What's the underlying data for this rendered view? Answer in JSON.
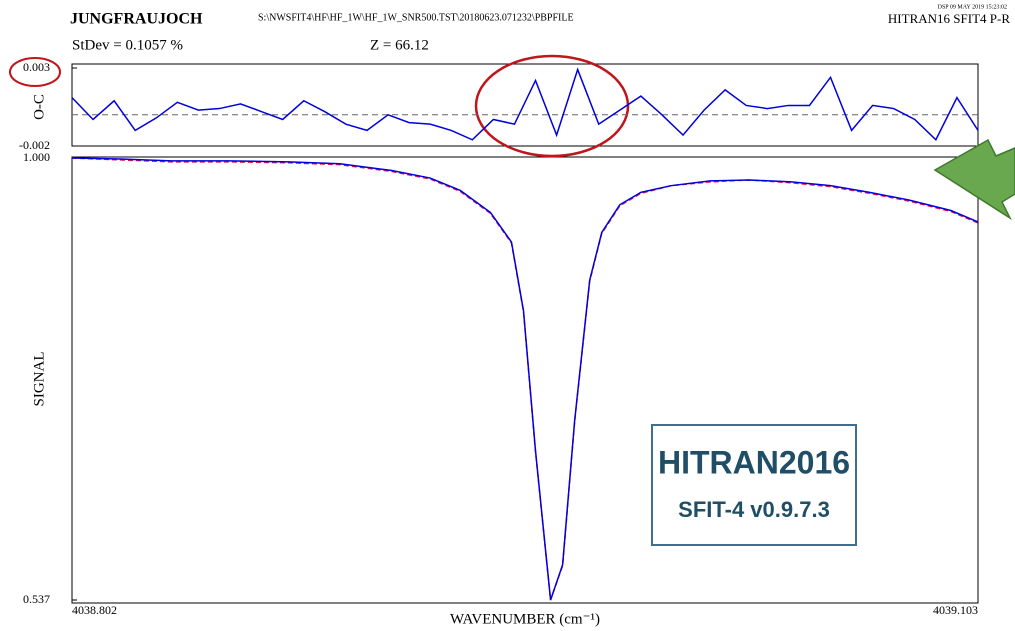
{
  "header": {
    "site": "JUNGFRAUJOCH",
    "file": "S:\\NWSFIT4\\HF\\HF_1W\\HF_1W_SNR500.TST\\20180623.071232\\PBPFILE",
    "stamp": "DSP  09 MAY 2019  15:23:02",
    "run": "HITRAN16 SFIT4 P-R",
    "stdev": "StDev = 0.1057 %",
    "z": "Z = 66.12"
  },
  "annotation": {
    "line1": "HITRAN2016",
    "line2": "SFIT-4 v0.9.7.3"
  },
  "chart_data": [
    {
      "type": "line",
      "y_label": "O-C",
      "x": [
        4038.802,
        4038.809,
        4038.816,
        4038.823,
        4038.83,
        4038.837,
        4038.844,
        4038.851,
        4038.858,
        4038.865,
        4038.872,
        4038.879,
        4038.886,
        4038.893,
        4038.9,
        4038.907,
        4038.914,
        4038.921,
        4038.928,
        4038.935,
        4038.942,
        4038.949,
        4038.956,
        4038.963,
        4038.97,
        4038.977,
        4038.984,
        4038.991,
        4038.998,
        4039.005,
        4039.012,
        4039.019,
        4039.026,
        4039.033,
        4039.04,
        4039.047,
        4039.054,
        4039.061,
        4039.068,
        4039.075,
        4039.082,
        4039.089,
        4039.096,
        4039.103
      ],
      "series": [
        {
          "color": "#0000dd",
          "values": [
            0.0011,
            -0.0003,
            0.0009,
            -0.001,
            -0.0002,
            0.0008,
            0.0003,
            0.0004,
            0.0007,
            0.0002,
            -0.0003,
            0.0009,
            0.0002,
            -0.0006,
            -0.001,
            0,
            -0.0005,
            -0.0006,
            -0.001,
            -0.0016,
            -0.0003,
            -0.0006,
            0.0022,
            -0.0013,
            0.0029,
            -0.0006,
            0.0003,
            0.0012,
            0,
            -0.0013,
            0.0003,
            0.0016,
            0.0006,
            0.0004,
            0.0006,
            0.0006,
            0.0024,
            -0.001,
            0.0006,
            0.0004,
            -0.0003,
            -0.0016,
            0.0011,
            -0.001
          ]
        }
      ],
      "xlim": [
        4038.802,
        4039.103
      ],
      "ylim": [
        -0.002,
        0.003
      ],
      "yticks": [
        -0.002,
        0.003
      ]
    },
    {
      "type": "line",
      "x_label": "WAVENUMBER (cm⁻¹)",
      "y_label": "SIGNAL",
      "x": [
        4038.802,
        4038.818,
        4038.835,
        4038.854,
        4038.874,
        4038.891,
        4038.908,
        4038.921,
        4038.931,
        4038.941,
        4038.948,
        4038.952,
        4038.956,
        4038.961,
        4038.965,
        4038.969,
        4038.974,
        4038.978,
        4038.984,
        4038.991,
        4039.001,
        4039.014,
        4039.027,
        4039.041,
        4039.054,
        4039.067,
        4039.08,
        4039.094,
        4039.103
      ],
      "series": [
        {
          "color": "#ee1144",
          "values": [
            1.0,
            0.998,
            0.996,
            0.996,
            0.995,
            0.993,
            0.986,
            0.978,
            0.965,
            0.942,
            0.911,
            0.839,
            0.692,
            0.537,
            0.573,
            0.724,
            0.871,
            0.921,
            0.95,
            0.963,
            0.971,
            0.975,
            0.977,
            0.974,
            0.97,
            0.963,
            0.955,
            0.944,
            0.932
          ]
        },
        {
          "color": "#0000dd",
          "values": [
            1.0,
            0.999,
            0.997,
            0.997,
            0.996,
            0.994,
            0.987,
            0.979,
            0.966,
            0.943,
            0.912,
            0.84,
            0.693,
            0.537,
            0.574,
            0.725,
            0.872,
            0.922,
            0.951,
            0.964,
            0.971,
            0.976,
            0.977,
            0.975,
            0.971,
            0.964,
            0.956,
            0.945,
            0.933
          ]
        }
      ],
      "xlim": [
        4038.802,
        4039.103
      ],
      "xticks": [
        4038.802,
        4039.103
      ],
      "ylim": [
        0.537,
        1.0
      ],
      "yticks": [
        0.537,
        {
          "value": 1.0,
          "label": "1.000"
        }
      ]
    }
  ]
}
